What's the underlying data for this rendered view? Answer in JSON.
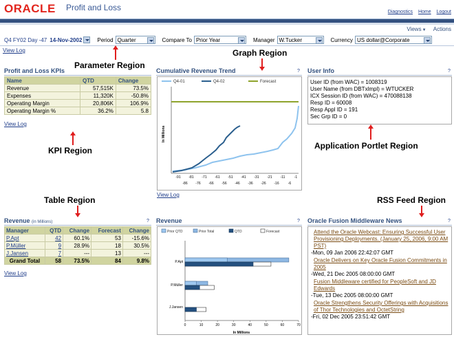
{
  "header": {
    "logo_text": "ORACLE",
    "app_title": "Profit and Loss",
    "links": [
      "Diagnostics",
      "Home",
      "Logout"
    ],
    "views_label": "Views",
    "actions_label": "Actions"
  },
  "params": {
    "period_prefix": "Q4 FY02 Day -47",
    "date": "14-Nov-2002",
    "period_label": "Period",
    "period_value": "Quarter",
    "compare_label": "Compare To",
    "compare_value": "Prior Year",
    "manager_label": "Manager",
    "manager_value": "W.Tucker",
    "currency_label": "Currency",
    "currency_value": "US dollar@Corporate"
  },
  "view_log": "View Log",
  "annotations": {
    "parameter": "Parameter Region",
    "graph": "Graph Region",
    "kpi": "KPI Region",
    "application": "Application Portlet Region",
    "table": "Table Region",
    "rss": "RSS Feed Region"
  },
  "kpi": {
    "title": "Profit and Loss KPIs",
    "headers": [
      "Name",
      "QTD",
      "Change"
    ],
    "rows": [
      [
        "Revenue",
        "57,515K",
        "73.5%"
      ],
      [
        "Expenses",
        "11,320K",
        "-50.8%"
      ],
      [
        "Operating Margin",
        "20,806K",
        "106.9%"
      ],
      [
        "Operating Margin %",
        "36.2%",
        "5.8"
      ]
    ]
  },
  "trend": {
    "title": "Cumulative Revenue Trend",
    "help": "?",
    "legend": [
      "Q4-01",
      "Q4-02",
      "Forecast"
    ],
    "ylabel": "In Millions",
    "xticks_top": [
      "-91",
      "-81",
      "-71",
      "-61",
      "-51",
      "-41",
      "-31",
      "-21",
      "-11",
      "-1"
    ],
    "xticks_bottom": [
      "-86",
      "-76",
      "-66",
      "-56",
      "-46",
      "-36",
      "-26",
      "-16",
      "-6"
    ],
    "colors": {
      "q401": "#8ec3ee",
      "q402": "#2b5f8e",
      "forecast": "#8ea32b"
    }
  },
  "user_info": {
    "title": "User Info",
    "help": "?",
    "lines": [
      "User ID (from WAC) = 1008319",
      "User Name (from DBTxlmpl) = WTUCKER",
      "ICX Session ID (from WAC) = 470088138",
      "Resp ID = 60008",
      "Resp Appl ID = 191",
      "Sec Grp ID = 0"
    ]
  },
  "revenue_table": {
    "title": "Revenue",
    "title_suffix": "(in Millions)",
    "help": "?",
    "headers": [
      "Manager",
      "QTD",
      "Change",
      "Forecast",
      "Change"
    ],
    "rows": [
      [
        "P.Apt",
        "42",
        "60.1%",
        "53",
        "-15.6%"
      ],
      [
        "P.Müller",
        "9",
        "28.9%",
        "18",
        "30.5%"
      ],
      [
        "J.Jansen",
        "7",
        "---",
        "13",
        "---"
      ]
    ],
    "total": [
      "Grand Total",
      "58",
      "73.5%",
      "84",
      "9.8%"
    ]
  },
  "revenue_chart": {
    "title": "Revenue",
    "help": "?",
    "legend": [
      "Prior QTD",
      "Prior Total",
      "QTD",
      "Forecast"
    ],
    "xlabel": "In Millions",
    "xticks": [
      "0",
      "10",
      "20",
      "30",
      "40",
      "50",
      "60",
      "70"
    ]
  },
  "chart_data": {
    "type": "bar",
    "categories": [
      "P.Apt",
      "P.Müller",
      "J.Jansen"
    ],
    "series": [
      {
        "name": "Prior QTD",
        "values": [
          26,
          7,
          0
        ]
      },
      {
        "name": "Prior Total",
        "values": [
          64,
          14,
          0
        ]
      },
      {
        "name": "QTD",
        "values": [
          42,
          9,
          7
        ]
      },
      {
        "name": "Forecast",
        "values": [
          53,
          18,
          13
        ]
      }
    ],
    "xlabel": "In Millions",
    "xlim": [
      0,
      70
    ]
  },
  "rss": {
    "title": "Oracle Fusion Middleware News",
    "help": "?",
    "items": [
      {
        "title": "Attend the Oracle Webcast: Ensuring Successful User Provisioning Deployments. (January 25, 2006, 9:00 AM PST)",
        "date": "-Mon, 09 Jan 2006 22:42:07 GMT"
      },
      {
        "title": "Oracle Delivers on Key Oracle Fusion Commitments in 2005",
        "date": "-Wed, 21 Dec 2005 08:00:00 GMT"
      },
      {
        "title": "Fusion Middleware certified for PeopleSoft and JD Edwards",
        "date": "-Tue, 13 Dec 2005 08:00:00 GMT"
      },
      {
        "title": "Oracle Strengthens Security Offerings with Acquisitions of Thor Technologies and OctetString",
        "date": "-Fri, 02 Dec 2005 23:51:42 GMT"
      }
    ]
  }
}
